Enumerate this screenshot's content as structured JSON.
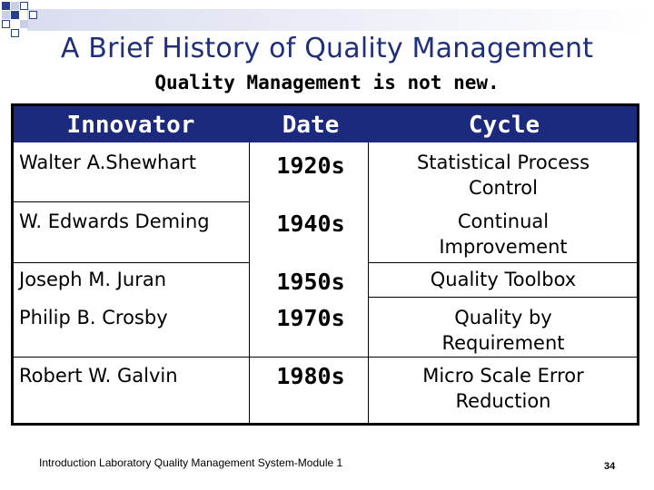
{
  "slide": {
    "title": "A Brief History of  Quality Management",
    "subtitle": "Quality Management is not new."
  },
  "table": {
    "headers": {
      "innovator": "Innovator",
      "date": "Date",
      "cycle": "Cycle"
    },
    "rows": [
      {
        "innovator": "Walter A.Shewhart",
        "date": "1920s",
        "cycle_line1": "Statistical Process",
        "cycle_line2": "Control"
      },
      {
        "innovator": "W. Edwards Deming",
        "date": "1940s",
        "cycle_line1": "Continual",
        "cycle_line2": "Improvement"
      },
      {
        "innovator": "Joseph M. Juran",
        "date": "1950s",
        "cycle_line1": "Quality Toolbox",
        "cycle_line2": ""
      },
      {
        "innovator": "Philip B. Crosby",
        "date": "1970s",
        "cycle_line1": "Quality by",
        "cycle_line2": "Requirement"
      },
      {
        "innovator": "Robert W. Galvin",
        "date": "1980s",
        "cycle_line1": "Micro Scale Error",
        "cycle_line2": "Reduction"
      }
    ]
  },
  "footer": {
    "text": "Introduction Laboratory Quality Management System-Module 1",
    "page_number": "34"
  },
  "colors": {
    "header_bg": "#1c2a7d",
    "title": "#1f2f7a",
    "accent": "#2b3f8f"
  }
}
